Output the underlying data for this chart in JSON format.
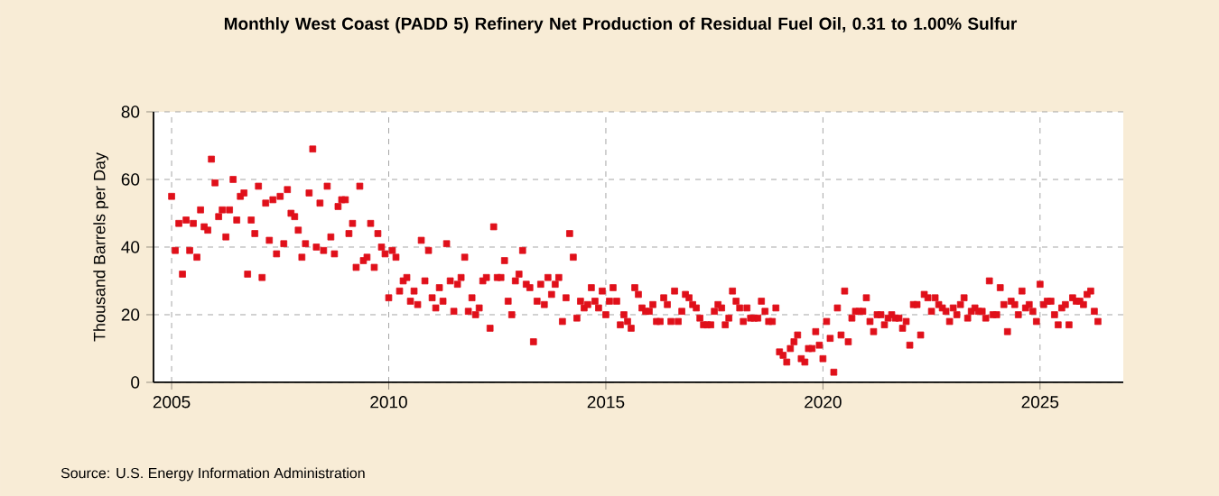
{
  "chart_data": {
    "type": "scatter",
    "title": "Monthly West Coast (PADD 5) Refinery Net Production of Residual Fuel Oil, 0.31 to 1.00% Sulfur",
    "ylabel": "Thousand Barrels per Day",
    "annotations": [
      "Source: U.S. Energy Information Administration"
    ],
    "xlim": [
      "2004-08",
      "2026-12"
    ],
    "xticks": [
      "2005",
      "2010",
      "2015",
      "2020",
      "2025"
    ],
    "ylim": [
      0,
      80
    ],
    "yticks": [
      0,
      20,
      40,
      60,
      80
    ],
    "grid": true,
    "marker": "square",
    "series": [
      {
        "color": "#e0101a",
        "x": [
          "2005-01",
          "2005-02",
          "2005-03",
          "2005-04",
          "2005-05",
          "2005-06",
          "2005-07",
          "2005-08",
          "2005-09",
          "2005-10",
          "2005-11",
          "2005-12",
          "2006-01",
          "2006-02",
          "2006-03",
          "2006-04",
          "2006-05",
          "2006-06",
          "2006-07",
          "2006-08",
          "2006-09",
          "2006-10",
          "2006-11",
          "2006-12",
          "2007-01",
          "2007-02",
          "2007-03",
          "2007-04",
          "2007-05",
          "2007-06",
          "2007-07",
          "2007-08",
          "2007-09",
          "2007-10",
          "2007-11",
          "2007-12",
          "2008-01",
          "2008-02",
          "2008-03",
          "2008-04",
          "2008-05",
          "2008-06",
          "2008-07",
          "2008-08",
          "2008-09",
          "2008-10",
          "2008-11",
          "2008-12",
          "2009-01",
          "2009-02",
          "2009-03",
          "2009-04",
          "2009-05",
          "2009-06",
          "2009-07",
          "2009-08",
          "2009-09",
          "2009-10",
          "2009-11",
          "2009-12",
          "2010-01",
          "2010-02",
          "2010-03",
          "2010-04",
          "2010-05",
          "2010-06",
          "2010-07",
          "2010-08",
          "2010-09",
          "2010-10",
          "2010-11",
          "2010-12",
          "2011-01",
          "2011-02",
          "2011-03",
          "2011-04",
          "2011-05",
          "2011-06",
          "2011-07",
          "2011-08",
          "2011-09",
          "2011-10",
          "2011-11",
          "2011-12",
          "2012-01",
          "2012-02",
          "2012-03",
          "2012-04",
          "2012-05",
          "2012-06",
          "2012-07",
          "2012-08",
          "2012-09",
          "2012-10",
          "2012-11",
          "2012-12",
          "2013-01",
          "2013-02",
          "2013-03",
          "2013-04",
          "2013-05",
          "2013-06",
          "2013-07",
          "2013-08",
          "2013-09",
          "2013-10",
          "2013-11",
          "2013-12",
          "2014-01",
          "2014-02",
          "2014-03",
          "2014-04",
          "2014-05",
          "2014-06",
          "2014-07",
          "2014-08",
          "2014-09",
          "2014-10",
          "2014-11",
          "2014-12",
          "2015-01",
          "2015-02",
          "2015-03",
          "2015-04",
          "2015-05",
          "2015-06",
          "2015-07",
          "2015-08",
          "2015-09",
          "2015-10",
          "2015-11",
          "2015-12",
          "2016-01",
          "2016-02",
          "2016-03",
          "2016-04",
          "2016-05",
          "2016-06",
          "2016-07",
          "2016-08",
          "2016-09",
          "2016-10",
          "2016-11",
          "2016-12",
          "2017-01",
          "2017-02",
          "2017-03",
          "2017-04",
          "2017-05",
          "2017-06",
          "2017-07",
          "2017-08",
          "2017-09",
          "2017-10",
          "2017-11",
          "2017-12",
          "2018-01",
          "2018-02",
          "2018-03",
          "2018-04",
          "2018-05",
          "2018-06",
          "2018-07",
          "2018-08",
          "2018-09",
          "2018-10",
          "2018-11",
          "2018-12",
          "2019-01",
          "2019-02",
          "2019-03",
          "2019-04",
          "2019-05",
          "2019-06",
          "2019-07",
          "2019-08",
          "2019-09",
          "2019-10",
          "2019-11",
          "2019-12",
          "2020-01",
          "2020-02",
          "2020-03",
          "2020-04",
          "2020-05",
          "2020-06",
          "2020-07",
          "2020-08",
          "2020-09",
          "2020-10",
          "2020-11",
          "2020-12",
          "2021-01",
          "2021-02",
          "2021-03",
          "2021-04",
          "2021-05",
          "2021-06",
          "2021-07",
          "2021-08",
          "2021-09",
          "2021-10",
          "2021-11",
          "2021-12",
          "2022-01",
          "2022-02",
          "2022-03",
          "2022-04",
          "2022-05",
          "2022-06",
          "2022-07",
          "2022-08",
          "2022-09",
          "2022-10",
          "2022-11",
          "2022-12",
          "2023-01",
          "2023-02",
          "2023-03",
          "2023-04",
          "2023-05",
          "2023-06",
          "2023-07",
          "2023-08",
          "2023-09",
          "2023-10",
          "2023-11",
          "2023-12",
          "2024-01",
          "2024-02",
          "2024-03",
          "2024-04",
          "2024-05",
          "2024-06",
          "2024-07",
          "2024-08",
          "2024-09",
          "2024-10",
          "2024-11",
          "2024-12",
          "2025-01",
          "2025-02",
          "2025-03",
          "2025-04",
          "2025-05",
          "2025-06",
          "2025-07",
          "2025-08",
          "2025-09",
          "2025-10",
          "2025-11",
          "2025-12",
          "2026-01",
          "2026-02",
          "2026-03",
          "2026-04",
          "2026-05"
        ],
        "values": [
          55,
          39,
          47,
          32,
          48,
          39,
          47,
          37,
          51,
          46,
          45,
          66,
          59,
          49,
          51,
          43,
          51,
          60,
          48,
          55,
          56,
          32,
          48,
          44,
          58,
          31,
          53,
          42,
          54,
          38,
          55,
          41,
          57,
          50,
          49,
          45,
          37,
          41,
          56,
          69,
          40,
          53,
          39,
          58,
          43,
          38,
          52,
          54,
          54,
          44,
          47,
          34,
          58,
          36,
          37,
          47,
          34,
          44,
          40,
          38,
          25,
          39,
          37,
          27,
          30,
          31,
          24,
          27,
          23,
          42,
          30,
          39,
          25,
          22,
          28,
          24,
          41,
          30,
          21,
          29,
          31,
          37,
          21,
          25,
          20,
          22,
          30,
          31,
          16,
          46,
          31,
          31,
          36,
          24,
          20,
          30,
          32,
          39,
          29,
          28,
          12,
          24,
          29,
          23,
          31,
          26,
          29,
          31,
          18,
          25,
          44,
          37,
          19,
          24,
          22,
          23,
          28,
          24,
          22,
          27,
          20,
          24,
          28,
          24,
          17,
          20,
          18,
          16,
          28,
          26,
          22,
          21,
          21,
          23,
          18,
          18,
          25,
          23,
          18,
          27,
          18,
          21,
          26,
          25,
          23,
          22,
          19,
          17,
          17,
          17,
          21,
          23,
          22,
          17,
          19,
          27,
          24,
          22,
          18,
          22,
          19,
          19,
          19,
          24,
          21,
          18,
          18,
          22,
          9,
          8,
          6,
          10,
          12,
          14,
          7,
          6,
          10,
          10,
          15,
          11,
          7,
          18,
          13,
          3,
          22,
          14,
          27,
          12,
          19,
          21,
          21,
          21,
          25,
          18,
          15,
          20,
          20,
          17,
          19,
          20,
          19,
          19,
          16,
          18,
          11,
          23,
          23,
          14,
          26,
          25,
          21,
          25,
          23,
          22,
          21,
          18,
          22,
          20,
          23,
          25,
          19,
          21,
          22,
          21,
          21,
          19,
          30,
          20,
          20,
          28,
          23,
          15,
          24,
          23,
          20,
          27,
          22,
          23,
          21,
          18,
          29,
          23,
          24,
          24,
          20,
          17,
          22,
          23,
          17,
          25,
          24,
          24,
          23,
          26,
          27,
          21,
          18
        ]
      }
    ]
  }
}
